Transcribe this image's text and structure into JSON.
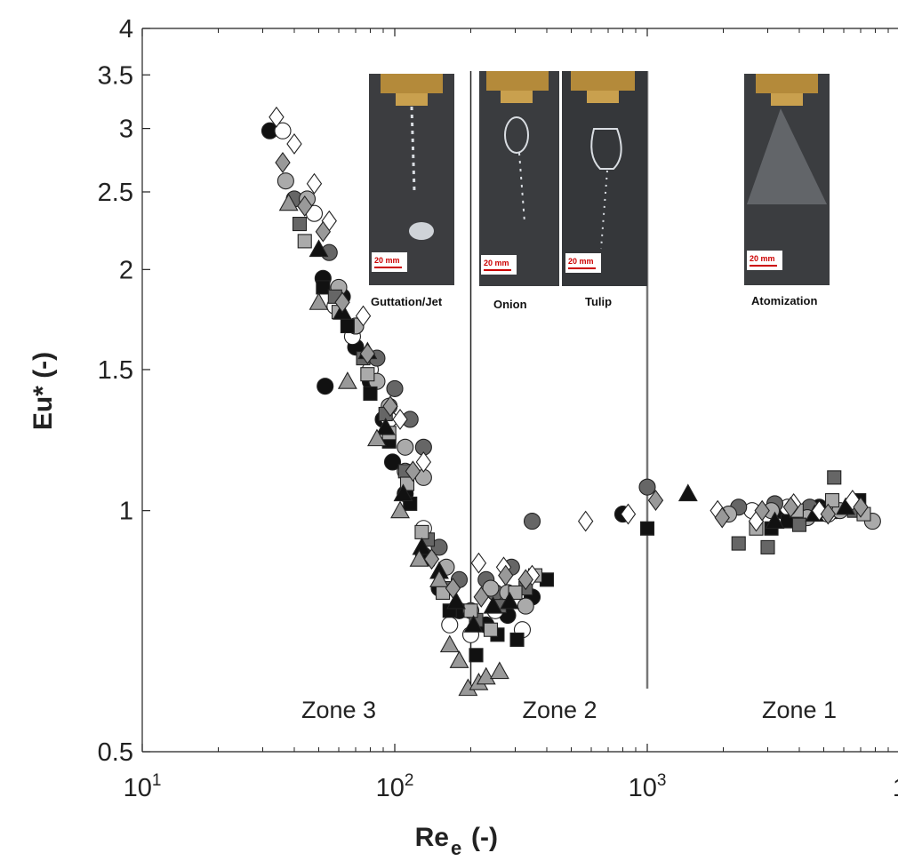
{
  "chart_data": {
    "type": "scatter",
    "title": "",
    "xlabel": "Re",
    "xlabel_subscript": "e",
    "xlabel_unit": "(-)",
    "ylabel": "Eu* (-)",
    "x_scale": "log",
    "y_scale": "log",
    "xlim": [
      10,
      10000
    ],
    "ylim": [
      0.5,
      4
    ],
    "x_ticks": [
      {
        "value": 10,
        "label_base": "10",
        "label_exp": "1"
      },
      {
        "value": 100,
        "label_base": "10",
        "label_exp": "2"
      },
      {
        "value": 1000,
        "label_base": "10",
        "label_exp": "3"
      },
      {
        "value": 10000,
        "label_base": "1",
        "label_exp": ""
      }
    ],
    "y_ticks": [
      {
        "value": 0.5,
        "label": "0.5"
      },
      {
        "value": 1,
        "label": "1"
      },
      {
        "value": 1.5,
        "label": "1.5"
      },
      {
        "value": 2,
        "label": "2"
      },
      {
        "value": 2.5,
        "label": "2.5"
      },
      {
        "value": 3,
        "label": "3"
      },
      {
        "value": 3.5,
        "label": "3.5"
      },
      {
        "value": 4,
        "label": "4"
      }
    ],
    "grid": false,
    "zone_boundaries": [
      200,
      1000
    ],
    "zone_labels": [
      {
        "text": "Zone 3",
        "x": 60
      },
      {
        "text": "Zone 2",
        "x": 450
      },
      {
        "text": "Zone 1",
        "x": 4000
      }
    ],
    "insets": [
      {
        "label": "Guttation/Jet",
        "scale_text": "20 mm"
      },
      {
        "label": "Onion",
        "scale_text": "20 mm"
      },
      {
        "label": "Tulip",
        "scale_text": "20 mm"
      },
      {
        "label": "Atomization",
        "scale_text": "20 mm"
      }
    ],
    "series": [
      {
        "marker": "circle",
        "fill": "#111111",
        "x": [
          32,
          52,
          53,
          62,
          70,
          80,
          90,
          98,
          110,
          130,
          150,
          180,
          230,
          280,
          350,
          800,
          3400,
          4100,
          4800,
          5600
        ],
        "y": [
          2.98,
          1.95,
          1.43,
          1.85,
          1.6,
          1.45,
          1.3,
          1.15,
          1.05,
          0.88,
          0.8,
          0.75,
          0.72,
          0.74,
          0.78,
          0.99,
          1.0,
          0.99,
          1.01,
          1.0
        ]
      },
      {
        "marker": "circle",
        "fill": "#ffffff",
        "x": [
          36,
          48,
          58,
          68,
          80,
          95,
          110,
          130,
          165,
          200,
          250,
          320,
          2600,
          3600,
          5200
        ],
        "y": [
          2.98,
          2.35,
          1.8,
          1.65,
          1.5,
          1.3,
          1.12,
          0.95,
          0.72,
          0.7,
          0.75,
          0.71,
          1.0,
          1.01,
          0.99
        ]
      },
      {
        "marker": "circle",
        "fill": "#666666",
        "x": [
          40,
          55,
          70,
          85,
          100,
          115,
          130,
          150,
          180,
          230,
          250,
          290,
          350,
          1000,
          2300,
          3200,
          4400
        ],
        "y": [
          2.45,
          2.1,
          1.7,
          1.55,
          1.42,
          1.3,
          1.2,
          0.9,
          0.82,
          0.82,
          0.79,
          0.85,
          0.97,
          1.07,
          1.01,
          1.02,
          1.01
        ]
      },
      {
        "marker": "circle",
        "fill": "#aaaaaa",
        "x": [
          37,
          45,
          60,
          70,
          85,
          95,
          110,
          130,
          160,
          200,
          240,
          280,
          330,
          2100,
          3100,
          4300,
          5800,
          7800
        ],
        "y": [
          2.58,
          2.45,
          1.9,
          1.7,
          1.45,
          1.35,
          1.2,
          1.1,
          0.85,
          0.75,
          0.8,
          0.79,
          0.76,
          0.99,
          1.0,
          0.98,
          1.0,
          0.97
        ]
      },
      {
        "marker": "square",
        "fill": "#111111",
        "x": [
          52,
          65,
          80,
          95,
          115,
          135,
          165,
          210,
          255,
          305,
          400,
          1000,
          3100,
          3600,
          5000,
          6900
        ],
        "y": [
          1.9,
          1.7,
          1.4,
          1.22,
          1.02,
          0.87,
          0.75,
          0.66,
          0.7,
          0.69,
          0.82,
          0.95,
          0.95,
          0.97,
          1.0,
          1.03
        ]
      },
      {
        "marker": "square",
        "fill": "#666666",
        "x": [
          42,
          58,
          75,
          92,
          110,
          135,
          160,
          210,
          260,
          330,
          2300,
          3000,
          4000,
          5500,
          6600
        ],
        "y": [
          2.28,
          1.85,
          1.55,
          1.32,
          1.12,
          0.92,
          0.8,
          0.73,
          0.76,
          0.8,
          0.91,
          0.9,
          0.96,
          1.1,
          1.0
        ]
      },
      {
        "marker": "square",
        "fill": "#aaaaaa",
        "x": [
          44,
          60,
          78,
          95,
          112,
          128,
          155,
          200,
          240,
          300,
          360,
          2700,
          3900,
          5400,
          7200
        ],
        "y": [
          2.17,
          1.77,
          1.48,
          1.25,
          1.08,
          0.94,
          0.79,
          0.75,
          0.71,
          0.79,
          0.83,
          0.95,
          1.0,
          1.03,
          0.99
        ]
      },
      {
        "marker": "triangle",
        "fill": "#111111",
        "x": [
          50,
          62,
          78,
          92,
          108,
          128,
          150,
          175,
          205,
          245,
          285,
          1450,
          3200,
          4600,
          6100
        ],
        "y": [
          2.12,
          1.77,
          1.58,
          1.27,
          1.05,
          0.9,
          0.84,
          0.77,
          0.72,
          0.76,
          0.77,
          1.05,
          0.97,
          0.99,
          1.01
        ]
      },
      {
        "marker": "triangle",
        "fill": "#999999",
        "x": [
          38,
          50,
          65,
          85,
          105,
          125,
          150,
          165,
          180,
          195,
          215,
          230,
          260
        ],
        "y": [
          2.42,
          1.82,
          1.45,
          1.23,
          1.0,
          0.87,
          0.82,
          0.68,
          0.65,
          0.6,
          0.61,
          0.62,
          0.63
        ]
      },
      {
        "marker": "diamond",
        "fill": "#ffffff",
        "x": [
          34,
          40,
          48,
          55,
          75,
          105,
          130,
          215,
          270,
          350,
          570,
          840,
          1900,
          2700,
          3800,
          4800,
          6500
        ],
        "y": [
          3.1,
          2.87,
          2.56,
          2.3,
          1.75,
          1.3,
          1.15,
          0.86,
          0.85,
          0.83,
          0.97,
          0.99,
          1.0,
          0.97,
          1.02,
          1.0,
          1.03
        ]
      },
      {
        "marker": "diamond",
        "fill": "#999999",
        "x": [
          36,
          44,
          52,
          62,
          78,
          96,
          118,
          140,
          170,
          220,
          275,
          330,
          1080,
          1980,
          2850,
          3700,
          5200,
          7000
        ],
        "y": [
          2.72,
          2.4,
          2.23,
          1.82,
          1.57,
          1.35,
          1.12,
          0.87,
          0.8,
          0.78,
          0.83,
          0.82,
          1.03,
          0.98,
          1.0,
          1.01,
          0.99,
          1.01
        ]
      }
    ]
  }
}
